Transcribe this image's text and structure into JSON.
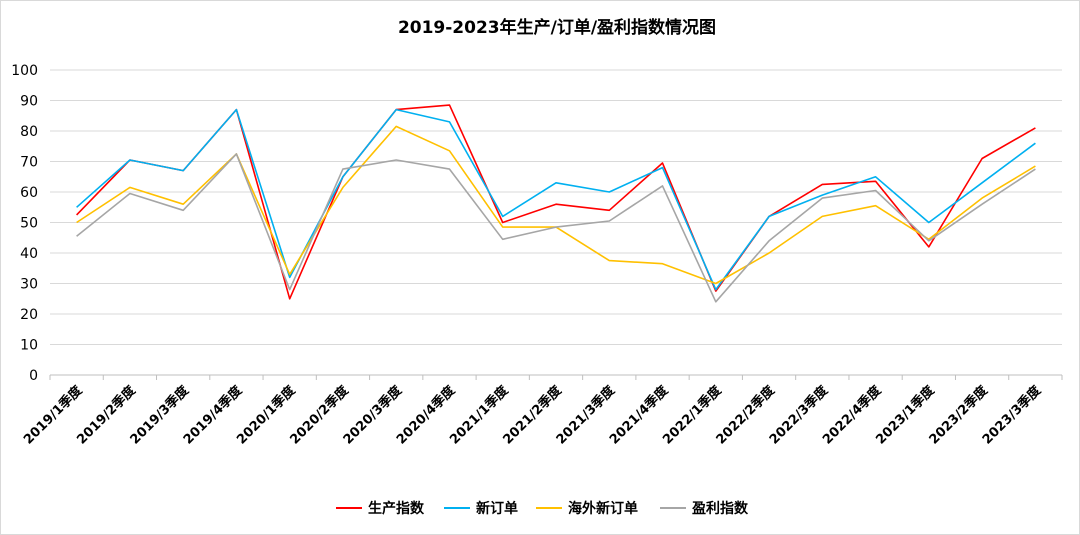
{
  "chart_data": {
    "type": "line",
    "title": "2019-2023年生产/订单/盈利指数情况图",
    "xlabel": "",
    "ylabel": "",
    "ylim": [
      0,
      100
    ],
    "yticks": [
      0,
      10,
      20,
      30,
      40,
      50,
      60,
      70,
      80,
      90,
      100
    ],
    "grid": true,
    "legend_position": "bottom",
    "categories": [
      "2019/1季度",
      "2019/2季度",
      "2019/3季度",
      "2019/4季度",
      "2020/1季度",
      "2020/2季度",
      "2020/3季度",
      "2020/4季度",
      "2021/1季度",
      "2021/2季度",
      "2021/3季度",
      "2021/4季度",
      "2022/1季度",
      "2022/2季度",
      "2022/3季度",
      "2022/4季度",
      "2023/1季度",
      "2023/2季度",
      "2023/3季度"
    ],
    "series": [
      {
        "name": "生产指数",
        "color": "#ff0000",
        "values": [
          52.5,
          70.5,
          67,
          87,
          25,
          65,
          87,
          88.5,
          50,
          56,
          54,
          69.5,
          27.5,
          52,
          62.5,
          63.5,
          42,
          71,
          81
        ]
      },
      {
        "name": "新订单",
        "color": "#00b0f0",
        "values": [
          55,
          70.5,
          67,
          87,
          32,
          65,
          87,
          83,
          52,
          63,
          60,
          68,
          28,
          52,
          59,
          65,
          50,
          63,
          76
        ]
      },
      {
        "name": "海外新订单",
        "color": "#ffc000",
        "values": [
          50,
          61.5,
          56,
          72.5,
          33,
          61.5,
          81.5,
          73.5,
          48.5,
          48.5,
          37.5,
          36.5,
          30,
          40,
          52,
          55.5,
          44.5,
          58,
          68.5
        ]
      },
      {
        "name": "盈利指数",
        "color": "#a6a6a6",
        "values": [
          45.5,
          59.5,
          54,
          72.5,
          28,
          67.5,
          70.5,
          67.5,
          44.5,
          48.5,
          50.5,
          62,
          24,
          44,
          58,
          60.5,
          44,
          56,
          67.5
        ]
      }
    ]
  }
}
